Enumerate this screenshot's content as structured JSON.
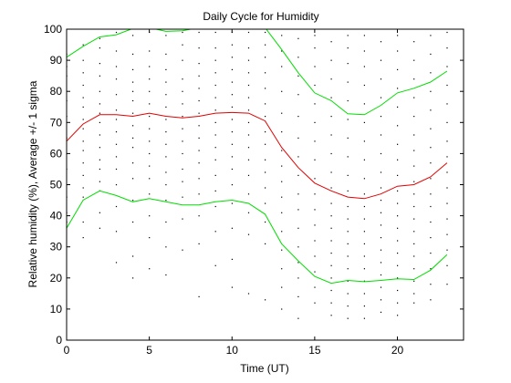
{
  "chart_data": {
    "type": "line",
    "title": "Daily Cycle for Humidity",
    "xlabel": "Time (UT)",
    "ylabel": "Relative humidity (%), Average +/- 1 sigma",
    "xlim": [
      0,
      24
    ],
    "ylim": [
      0,
      100
    ],
    "xticks": [
      0,
      5,
      10,
      15,
      20
    ],
    "yticks": [
      0,
      10,
      20,
      30,
      40,
      50,
      60,
      70,
      80,
      90,
      100
    ],
    "grid": false,
    "legend": "none",
    "colors": {
      "mean": "#e00000",
      "sigma": "#00dd00",
      "points": "#000000"
    },
    "x": [
      0,
      1,
      2,
      3,
      4,
      5,
      6,
      7,
      8,
      9,
      10,
      11,
      12,
      13,
      14,
      15,
      16,
      17,
      18,
      19,
      20,
      21,
      22,
      23
    ],
    "series": [
      {
        "role": "mean",
        "values": [
          64,
          69.5,
          72.5,
          72.5,
          72,
          73,
          72,
          71.5,
          72,
          73,
          73.2,
          73,
          70.5,
          62,
          55.5,
          50.5,
          48,
          46,
          45.5,
          47,
          49.5,
          50,
          52.5,
          57
        ]
      },
      {
        "role": "upper",
        "values": [
          91,
          94.5,
          97.5,
          98.2,
          100.2,
          100.5,
          99.3,
          99.5,
          100.5,
          101,
          101,
          101,
          100.5,
          93.5,
          86,
          79.5,
          77,
          72.8,
          72.5,
          75.5,
          79.5,
          81,
          83,
          86.5
        ]
      },
      {
        "role": "lower",
        "values": [
          36,
          45,
          48,
          46.5,
          44.5,
          45.5,
          44.5,
          43.5,
          43.5,
          44.5,
          45,
          44,
          40.5,
          31,
          25.5,
          20.5,
          18.3,
          19.2,
          18.8,
          19.2,
          19.7,
          19.5,
          22.5,
          27.5
        ]
      }
    ],
    "points": [
      [
        0,
        92
      ],
      [
        0,
        88
      ],
      [
        0,
        85
      ],
      [
        0,
        77
      ],
      [
        0,
        72
      ],
      [
        0,
        65
      ],
      [
        0,
        60
      ],
      [
        0,
        55
      ],
      [
        0,
        50
      ],
      [
        0,
        46
      ],
      [
        0,
        41
      ],
      [
        0,
        38
      ],
      [
        1,
        95
      ],
      [
        1,
        90
      ],
      [
        1,
        86
      ],
      [
        1,
        82
      ],
      [
        1,
        78
      ],
      [
        1,
        75
      ],
      [
        1,
        71
      ],
      [
        1,
        68
      ],
      [
        1,
        64
      ],
      [
        1,
        61
      ],
      [
        1,
        57
      ],
      [
        1,
        53
      ],
      [
        1,
        49
      ],
      [
        1,
        46
      ],
      [
        1,
        38
      ],
      [
        1,
        33
      ],
      [
        2,
        97
      ],
      [
        2,
        94
      ],
      [
        2,
        89
      ],
      [
        2,
        85
      ],
      [
        2,
        80
      ],
      [
        2,
        76
      ],
      [
        2,
        73
      ],
      [
        2,
        70
      ],
      [
        2,
        66
      ],
      [
        2,
        62
      ],
      [
        2,
        58
      ],
      [
        2,
        55
      ],
      [
        2,
        51
      ],
      [
        2,
        48
      ],
      [
        2,
        41
      ],
      [
        2,
        36
      ],
      [
        3,
        99
      ],
      [
        3,
        93
      ],
      [
        3,
        88
      ],
      [
        3,
        84
      ],
      [
        3,
        79
      ],
      [
        3,
        74
      ],
      [
        3,
        71
      ],
      [
        3,
        67
      ],
      [
        3,
        63
      ],
      [
        3,
        59
      ],
      [
        3,
        55
      ],
      [
        3,
        50
      ],
      [
        3,
        43
      ],
      [
        3,
        35
      ],
      [
        3,
        25
      ],
      [
        4,
        98
      ],
      [
        4,
        92
      ],
      [
        4,
        87
      ],
      [
        4,
        83
      ],
      [
        4,
        80
      ],
      [
        4,
        77
      ],
      [
        4,
        73
      ],
      [
        4,
        69
      ],
      [
        4,
        65
      ],
      [
        4,
        62
      ],
      [
        4,
        57
      ],
      [
        4,
        52
      ],
      [
        4,
        45
      ],
      [
        4,
        38
      ],
      [
        4,
        27
      ],
      [
        4,
        20
      ],
      [
        5,
        99
      ],
      [
        5,
        93
      ],
      [
        5,
        88
      ],
      [
        5,
        84
      ],
      [
        5,
        80
      ],
      [
        5,
        76
      ],
      [
        5,
        72
      ],
      [
        5,
        68
      ],
      [
        5,
        64
      ],
      [
        5,
        60
      ],
      [
        5,
        56
      ],
      [
        5,
        52
      ],
      [
        5,
        47
      ],
      [
        5,
        40
      ],
      [
        5,
        33
      ],
      [
        5,
        23
      ],
      [
        6,
        98
      ],
      [
        6,
        92
      ],
      [
        6,
        87
      ],
      [
        6,
        83
      ],
      [
        6,
        79
      ],
      [
        6,
        75
      ],
      [
        6,
        71
      ],
      [
        6,
        67
      ],
      [
        6,
        63
      ],
      [
        6,
        59
      ],
      [
        6,
        54
      ],
      [
        6,
        50
      ],
      [
        6,
        45
      ],
      [
        6,
        38
      ],
      [
        6,
        30
      ],
      [
        6,
        21
      ],
      [
        7,
        99
      ],
      [
        7,
        95
      ],
      [
        7,
        90
      ],
      [
        7,
        84
      ],
      [
        7,
        80
      ],
      [
        7,
        76
      ],
      [
        7,
        72
      ],
      [
        7,
        68
      ],
      [
        7,
        64
      ],
      [
        7,
        60
      ],
      [
        7,
        55
      ],
      [
        7,
        51
      ],
      [
        7,
        46
      ],
      [
        7,
        39
      ],
      [
        7,
        29
      ],
      [
        8,
        99
      ],
      [
        8,
        94
      ],
      [
        8,
        89
      ],
      [
        8,
        85
      ],
      [
        8,
        81
      ],
      [
        8,
        77
      ],
      [
        8,
        73
      ],
      [
        8,
        69
      ],
      [
        8,
        65
      ],
      [
        8,
        61
      ],
      [
        8,
        57
      ],
      [
        8,
        52
      ],
      [
        8,
        47
      ],
      [
        8,
        40
      ],
      [
        8,
        31
      ],
      [
        8,
        14
      ],
      [
        9,
        99
      ],
      [
        9,
        94
      ],
      [
        9,
        90
      ],
      [
        9,
        86
      ],
      [
        9,
        82
      ],
      [
        9,
        78
      ],
      [
        9,
        74
      ],
      [
        9,
        70
      ],
      [
        9,
        66
      ],
      [
        9,
        62
      ],
      [
        9,
        58
      ],
      [
        9,
        53
      ],
      [
        9,
        48
      ],
      [
        9,
        43
      ],
      [
        9,
        35
      ],
      [
        9,
        24
      ],
      [
        10,
        99
      ],
      [
        10,
        95
      ],
      [
        10,
        91
      ],
      [
        10,
        87
      ],
      [
        10,
        83
      ],
      [
        10,
        79
      ],
      [
        10,
        75
      ],
      [
        10,
        71
      ],
      [
        10,
        67
      ],
      [
        10,
        63
      ],
      [
        10,
        59
      ],
      [
        10,
        55
      ],
      [
        10,
        50
      ],
      [
        10,
        44
      ],
      [
        10,
        36
      ],
      [
        10,
        26
      ],
      [
        10,
        17
      ],
      [
        11,
        99
      ],
      [
        11,
        94
      ],
      [
        11,
        90
      ],
      [
        11,
        86
      ],
      [
        11,
        82
      ],
      [
        11,
        78
      ],
      [
        11,
        74
      ],
      [
        11,
        70
      ],
      [
        11,
        66
      ],
      [
        11,
        62
      ],
      [
        11,
        58
      ],
      [
        11,
        53
      ],
      [
        11,
        47
      ],
      [
        11,
        41
      ],
      [
        11,
        34
      ],
      [
        11,
        15
      ],
      [
        12,
        99
      ],
      [
        12,
        95
      ],
      [
        12,
        91
      ],
      [
        12,
        86
      ],
      [
        12,
        81
      ],
      [
        12,
        76
      ],
      [
        12,
        72
      ],
      [
        12,
        67
      ],
      [
        12,
        63
      ],
      [
        12,
        58
      ],
      [
        12,
        54
      ],
      [
        12,
        49
      ],
      [
        12,
        44
      ],
      [
        12,
        38
      ],
      [
        12,
        31
      ],
      [
        12,
        13
      ],
      [
        13,
        98
      ],
      [
        13,
        93
      ],
      [
        13,
        88
      ],
      [
        13,
        80
      ],
      [
        13,
        73
      ],
      [
        13,
        67
      ],
      [
        13,
        61
      ],
      [
        13,
        56
      ],
      [
        13,
        51
      ],
      [
        13,
        46
      ],
      [
        13,
        41
      ],
      [
        13,
        35
      ],
      [
        13,
        29
      ],
      [
        13,
        23
      ],
      [
        13,
        17
      ],
      [
        13,
        10
      ],
      [
        14,
        97
      ],
      [
        14,
        91
      ],
      [
        14,
        85
      ],
      [
        14,
        79
      ],
      [
        14,
        72
      ],
      [
        14,
        65
      ],
      [
        14,
        59
      ],
      [
        14,
        53
      ],
      [
        14,
        47
      ],
      [
        14,
        42
      ],
      [
        14,
        36
      ],
      [
        14,
        30
      ],
      [
        14,
        25
      ],
      [
        14,
        20
      ],
      [
        14,
        14
      ],
      [
        14,
        7
      ],
      [
        15,
        98
      ],
      [
        15,
        94
      ],
      [
        15,
        88
      ],
      [
        15,
        82
      ],
      [
        15,
        76
      ],
      [
        15,
        70
      ],
      [
        15,
        64
      ],
      [
        15,
        58
      ],
      [
        15,
        52
      ],
      [
        15,
        47
      ],
      [
        15,
        42
      ],
      [
        15,
        37
      ],
      [
        15,
        32
      ],
      [
        15,
        27
      ],
      [
        15,
        22
      ],
      [
        15,
        17
      ],
      [
        15,
        12
      ],
      [
        16,
        96
      ],
      [
        16,
        90
      ],
      [
        16,
        84
      ],
      [
        16,
        78
      ],
      [
        16,
        72
      ],
      [
        16,
        66
      ],
      [
        16,
        60
      ],
      [
        16,
        54
      ],
      [
        16,
        49
      ],
      [
        16,
        44
      ],
      [
        16,
        40
      ],
      [
        16,
        36
      ],
      [
        16,
        32
      ],
      [
        16,
        28
      ],
      [
        16,
        24
      ],
      [
        16,
        20
      ],
      [
        16,
        16
      ],
      [
        16,
        12
      ],
      [
        16,
        8
      ],
      [
        17,
        98
      ],
      [
        17,
        94
      ],
      [
        17,
        89
      ],
      [
        17,
        83
      ],
      [
        17,
        77
      ],
      [
        17,
        71
      ],
      [
        17,
        65
      ],
      [
        17,
        59
      ],
      [
        17,
        53
      ],
      [
        17,
        48
      ],
      [
        17,
        43
      ],
      [
        17,
        39
      ],
      [
        17,
        35
      ],
      [
        17,
        31
      ],
      [
        17,
        27
      ],
      [
        17,
        23
      ],
      [
        17,
        19
      ],
      [
        17,
        15
      ],
      [
        17,
        11
      ],
      [
        17,
        7
      ],
      [
        18,
        98
      ],
      [
        18,
        93
      ],
      [
        18,
        88
      ],
      [
        18,
        82
      ],
      [
        18,
        76
      ],
      [
        18,
        70
      ],
      [
        18,
        64
      ],
      [
        18,
        58
      ],
      [
        18,
        52
      ],
      [
        18,
        47
      ],
      [
        18,
        43
      ],
      [
        18,
        39
      ],
      [
        18,
        35
      ],
      [
        18,
        31
      ],
      [
        18,
        27
      ],
      [
        18,
        23
      ],
      [
        18,
        19
      ],
      [
        18,
        15
      ],
      [
        18,
        11
      ],
      [
        18,
        7
      ],
      [
        19,
        96
      ],
      [
        19,
        90
      ],
      [
        19,
        84
      ],
      [
        19,
        78
      ],
      [
        19,
        72
      ],
      [
        19,
        66
      ],
      [
        19,
        60
      ],
      [
        19,
        54
      ],
      [
        19,
        49
      ],
      [
        19,
        45
      ],
      [
        19,
        41
      ],
      [
        19,
        37
      ],
      [
        19,
        33
      ],
      [
        19,
        29
      ],
      [
        19,
        25
      ],
      [
        19,
        21
      ],
      [
        19,
        17
      ],
      [
        19,
        13
      ],
      [
        19,
        9
      ],
      [
        20,
        98
      ],
      [
        20,
        93
      ],
      [
        20,
        87
      ],
      [
        20,
        81
      ],
      [
        20,
        75
      ],
      [
        20,
        69
      ],
      [
        20,
        63
      ],
      [
        20,
        58
      ],
      [
        20,
        53
      ],
      [
        20,
        48
      ],
      [
        20,
        44
      ],
      [
        20,
        40
      ],
      [
        20,
        36
      ],
      [
        20,
        32
      ],
      [
        20,
        28
      ],
      [
        20,
        24
      ],
      [
        20,
        20
      ],
      [
        20,
        16
      ],
      [
        20,
        12
      ],
      [
        20,
        8
      ],
      [
        21,
        96
      ],
      [
        21,
        90
      ],
      [
        21,
        84
      ],
      [
        21,
        78
      ],
      [
        21,
        72
      ],
      [
        21,
        66
      ],
      [
        21,
        61
      ],
      [
        21,
        56
      ],
      [
        21,
        51
      ],
      [
        21,
        47
      ],
      [
        21,
        43
      ],
      [
        21,
        39
      ],
      [
        21,
        35
      ],
      [
        21,
        31
      ],
      [
        21,
        27
      ],
      [
        21,
        23
      ],
      [
        21,
        19
      ],
      [
        21,
        15
      ],
      [
        21,
        12
      ],
      [
        22,
        98
      ],
      [
        22,
        92
      ],
      [
        22,
        86
      ],
      [
        22,
        80
      ],
      [
        22,
        74
      ],
      [
        22,
        68
      ],
      [
        22,
        62
      ],
      [
        22,
        57
      ],
      [
        22,
        52
      ],
      [
        22,
        47
      ],
      [
        22,
        43
      ],
      [
        22,
        38
      ],
      [
        22,
        33
      ],
      [
        22,
        28
      ],
      [
        22,
        23
      ],
      [
        22,
        18
      ],
      [
        22,
        13
      ],
      [
        23,
        99
      ],
      [
        23,
        94
      ],
      [
        23,
        88
      ],
      [
        23,
        82
      ],
      [
        23,
        76
      ],
      [
        23,
        70
      ],
      [
        23,
        64
      ],
      [
        23,
        59
      ],
      [
        23,
        54
      ],
      [
        23,
        49
      ],
      [
        23,
        44
      ],
      [
        23,
        39
      ],
      [
        23,
        34
      ],
      [
        23,
        29
      ],
      [
        23,
        24
      ],
      [
        23,
        18
      ]
    ]
  }
}
